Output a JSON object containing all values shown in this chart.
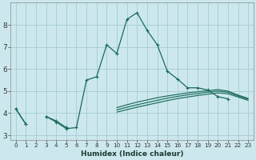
{
  "xlabel": "Humidex (Indice chaleur)",
  "x_values": [
    0,
    1,
    2,
    3,
    4,
    5,
    6,
    7,
    8,
    9,
    10,
    11,
    12,
    13,
    14,
    15,
    16,
    17,
    18,
    19,
    20,
    21,
    22,
    23
  ],
  "main_y": [
    4.2,
    3.5,
    null,
    3.85,
    3.6,
    3.3,
    3.35,
    5.5,
    5.65,
    7.1,
    6.7,
    8.25,
    8.55,
    7.75,
    7.1,
    5.9,
    5.55,
    5.15,
    5.15,
    5.05,
    4.75,
    4.65,
    null,
    null
  ],
  "line_a": [
    4.2,
    3.5,
    null,
    3.85,
    3.65,
    3.35,
    null,
    null,
    null,
    null,
    null,
    null,
    null,
    null,
    null,
    null,
    null,
    null,
    null,
    null,
    null,
    null,
    null,
    null
  ],
  "line_b": [
    4.2,
    null,
    null,
    null,
    null,
    null,
    null,
    null,
    null,
    null,
    4.25,
    4.38,
    4.5,
    4.6,
    4.7,
    4.78,
    4.85,
    4.92,
    4.97,
    5.02,
    5.07,
    5.0,
    4.82,
    4.67
  ],
  "line_c": [
    4.2,
    null,
    null,
    null,
    null,
    null,
    null,
    null,
    null,
    null,
    4.15,
    4.27,
    4.38,
    4.48,
    4.58,
    4.68,
    4.76,
    4.83,
    4.89,
    4.95,
    5.0,
    4.95,
    4.78,
    4.63
  ],
  "line_d": [
    4.2,
    null,
    null,
    null,
    null,
    null,
    null,
    null,
    null,
    null,
    4.05,
    4.16,
    4.27,
    4.37,
    4.47,
    4.57,
    4.66,
    4.73,
    4.8,
    4.86,
    4.92,
    4.88,
    4.73,
    4.58
  ],
  "background_color": "#cce8ee",
  "grid_color": "#aad0d8",
  "line_color": "#1a6b5a",
  "ylim": [
    2.8,
    9.0
  ],
  "xlim": [
    -0.5,
    23.5
  ]
}
